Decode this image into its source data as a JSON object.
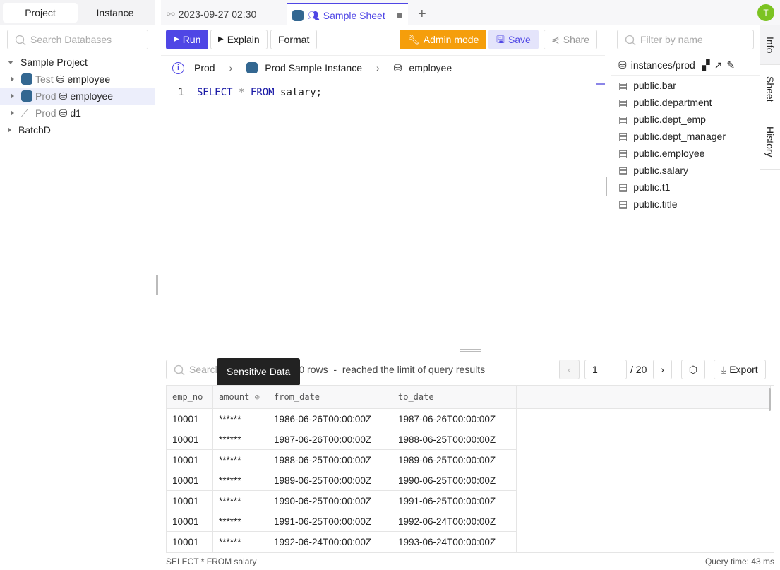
{
  "sidebar": {
    "tabs": [
      "Project",
      "Instance"
    ],
    "search_placeholder": "Search Databases",
    "tree": [
      {
        "label": "Sample Project"
      },
      {
        "env": "Test",
        "db": "employee"
      },
      {
        "env": "Prod",
        "db": "employee"
      },
      {
        "env": "Prod",
        "db": "d1"
      },
      {
        "label": "BatchD"
      }
    ]
  },
  "tabs": [
    {
      "label": "2023-09-27 02:30"
    },
    {
      "label": "Sample Sheet"
    }
  ],
  "avatar": "T",
  "toolbar": {
    "run": "Run",
    "explain": "Explain",
    "format": "Format",
    "admin": "Admin mode",
    "save": "Save",
    "share": "Share"
  },
  "breadcrumb": {
    "env": "Prod",
    "instance": "Prod Sample Instance",
    "database": "employee"
  },
  "editor": {
    "line": "1",
    "kw1": "SELECT",
    "star": "*",
    "kw2": "FROM",
    "rest": "salary;"
  },
  "right": {
    "filter_placeholder": "Filter by name",
    "path": "instances/prod",
    "tables": [
      "public.bar",
      "public.department",
      "public.dept_emp",
      "public.dept_manager",
      "public.employee",
      "public.salary",
      "public.t1",
      "public.title"
    ],
    "vtabs": [
      "Info",
      "Sheet",
      "History"
    ]
  },
  "results": {
    "search_placeholder": "Search",
    "status": "1000 rows  -  reached the limit of query results",
    "tooltip": "Sensitive Data",
    "page": "1",
    "total": "/ 20",
    "export": "Export",
    "columns": [
      "emp_no",
      "amount",
      "from_date",
      "to_date"
    ],
    "rows": [
      [
        "10001",
        "******",
        "1986-06-26T00:00:00Z",
        "1987-06-26T00:00:00Z"
      ],
      [
        "10001",
        "******",
        "1987-06-26T00:00:00Z",
        "1988-06-25T00:00:00Z"
      ],
      [
        "10001",
        "******",
        "1988-06-25T00:00:00Z",
        "1989-06-25T00:00:00Z"
      ],
      [
        "10001",
        "******",
        "1989-06-25T00:00:00Z",
        "1990-06-25T00:00:00Z"
      ],
      [
        "10001",
        "******",
        "1990-06-25T00:00:00Z",
        "1991-06-25T00:00:00Z"
      ],
      [
        "10001",
        "******",
        "1991-06-25T00:00:00Z",
        "1992-06-24T00:00:00Z"
      ],
      [
        "10001",
        "******",
        "1992-06-24T00:00:00Z",
        "1993-06-24T00:00:00Z"
      ]
    ]
  },
  "footer": {
    "sql": "SELECT * FROM salary",
    "time": "Query time: 43 ms"
  },
  "colors": {
    "accent": "#4f46e5",
    "admin": "#f59e0b",
    "avatar": "#7cc322"
  }
}
